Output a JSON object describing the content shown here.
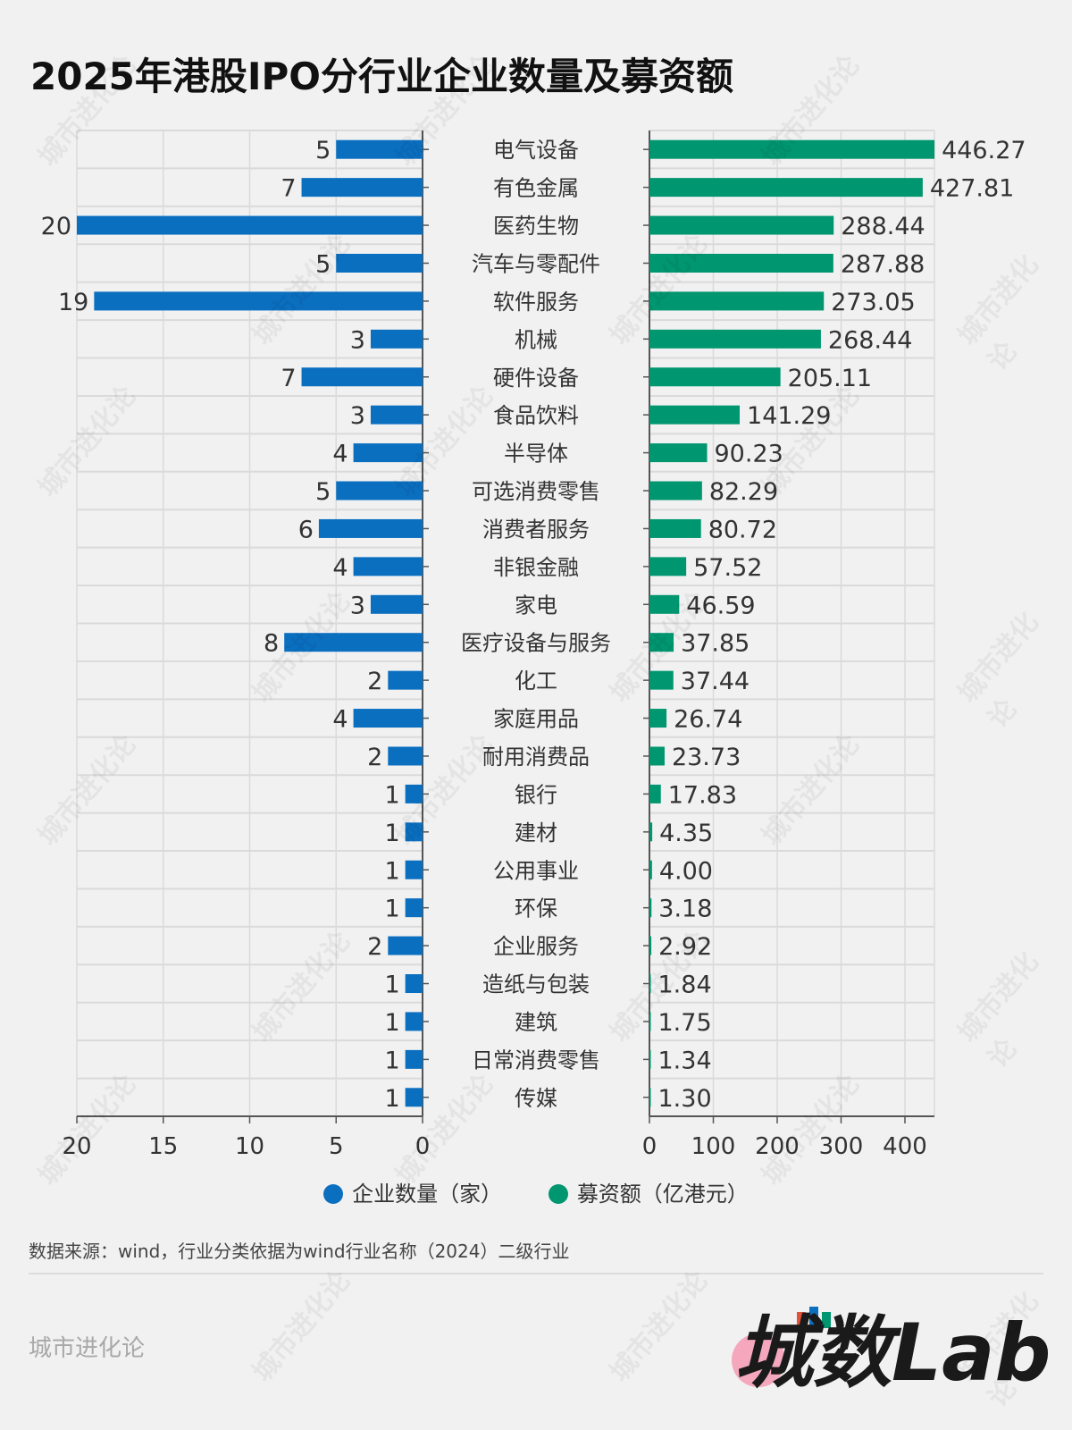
{
  "chart_data": {
    "type": "bar",
    "title": "2025年港股IPO分行业企业数量及募资额",
    "categories": [
      "电气设备",
      "有色金属",
      "医药生物",
      "汽车与零配件",
      "软件服务",
      "机械",
      "硬件设备",
      "食品饮料",
      "半导体",
      "可选消费零售",
      "消费者服务",
      "非银金融",
      "家电",
      "医疗设备与服务",
      "化工",
      "家庭用品",
      "耐用消费品",
      "银行",
      "建材",
      "公用事业",
      "环保",
      "企业服务",
      "造纸与包装",
      "建筑",
      "日常消费零售",
      "传媒"
    ],
    "series": [
      {
        "name": "企业数量（家）",
        "color": "#0b6fc0",
        "xlim": [
          0,
          20
        ],
        "ticks": [
          20,
          15,
          10,
          5,
          0
        ],
        "values": [
          5,
          7,
          20,
          5,
          19,
          3,
          7,
          3,
          4,
          5,
          6,
          4,
          3,
          8,
          2,
          4,
          2,
          1,
          1,
          1,
          1,
          2,
          1,
          1,
          1,
          1
        ]
      },
      {
        "name": "募资额（亿港元）",
        "color": "#009670",
        "xlim": [
          0,
          446.27
        ],
        "ticks": [
          0,
          100,
          200,
          300,
          400
        ],
        "values": [
          446.27,
          427.81,
          288.44,
          287.88,
          273.05,
          268.44,
          205.11,
          141.29,
          90.23,
          82.29,
          80.72,
          57.52,
          46.59,
          37.85,
          37.44,
          26.74,
          23.73,
          17.83,
          4.35,
          4.0,
          3.18,
          2.92,
          1.84,
          1.75,
          1.34,
          1.3
        ],
        "labels": [
          "446.27",
          "427.81",
          "288.44",
          "287.88",
          "273.05",
          "268.44",
          "205.11",
          "141.29",
          "90.23",
          "82.29",
          "80.72",
          "57.52",
          "46.59",
          "37.85",
          "37.44",
          "26.74",
          "23.73",
          "17.83",
          "4.35",
          "4.00",
          "3.18",
          "2.92",
          "1.84",
          "1.75",
          "1.34",
          "1.30"
        ]
      }
    ],
    "grid": true,
    "legend": "bottom-center"
  },
  "footer": {
    "source": "数据来源：wind，行业分类依据为wind行业名称（2024）二级行业",
    "brand": "城市进化论",
    "logo_text": "城数Lab."
  },
  "watermark": "城市进化论 URBAN EVOLUTION"
}
